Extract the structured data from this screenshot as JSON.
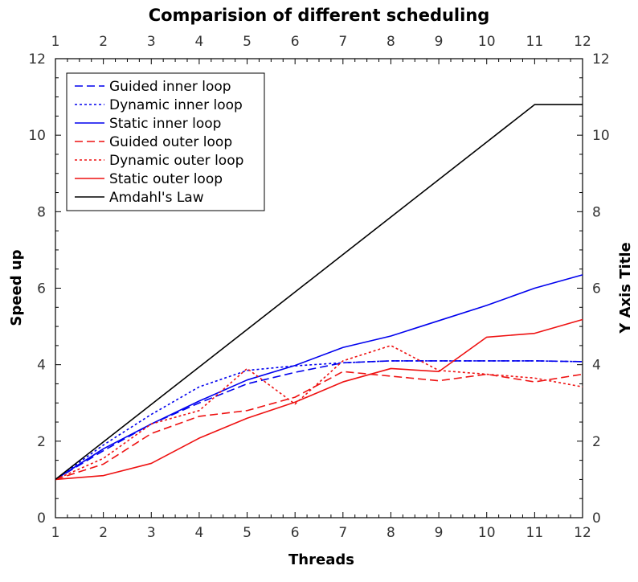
{
  "chart_data": {
    "type": "line",
    "title": "Comparision of different scheduling",
    "xlabel": "Threads",
    "ylabel": "Speed up",
    "ylabel_right": "Y Axis Title",
    "x": [
      1,
      2,
      3,
      4,
      5,
      6,
      7,
      8,
      9,
      10,
      11,
      12
    ],
    "xlim": [
      1,
      12
    ],
    "ylim": [
      0,
      12
    ],
    "x_ticks": [
      "1",
      "2",
      "3",
      "4",
      "5",
      "6",
      "7",
      "8",
      "9",
      "10",
      "11",
      "12"
    ],
    "y_ticks": [
      "0",
      "2",
      "4",
      "6",
      "8",
      "10",
      "12"
    ],
    "grid": false,
    "legend_position": "top-left",
    "series": [
      {
        "name": "Guided inner loop",
        "color": "#0000ee",
        "dash": "dashed",
        "values": [
          1.0,
          1.75,
          2.45,
          3.0,
          3.5,
          3.8,
          4.05,
          4.1,
          4.1,
          4.1,
          4.1,
          4.08
        ]
      },
      {
        "name": "Dynamic inner loop",
        "color": "#0000ee",
        "dash": "dotted",
        "values": [
          1.0,
          1.9,
          2.7,
          3.42,
          3.85,
          3.97,
          4.05,
          4.1,
          4.1,
          4.1,
          4.1,
          4.08
        ]
      },
      {
        "name": "Static inner loop",
        "color": "#0000ee",
        "dash": "solid",
        "values": [
          1.0,
          1.8,
          2.45,
          3.05,
          3.6,
          3.98,
          4.45,
          4.75,
          5.15,
          5.55,
          6.0,
          6.35
        ]
      },
      {
        "name": "Guided  outer loop",
        "color": "#ee1111",
        "dash": "dashed",
        "values": [
          1.0,
          1.4,
          2.2,
          2.65,
          2.8,
          3.15,
          3.82,
          3.7,
          3.58,
          3.75,
          3.55,
          3.75
        ]
      },
      {
        "name": "Dynamic  outer loop",
        "color": "#ee1111",
        "dash": "dotted",
        "values": [
          1.0,
          1.55,
          2.45,
          2.8,
          3.9,
          2.97,
          4.1,
          4.5,
          3.85,
          3.75,
          3.65,
          3.42
        ]
      },
      {
        "name": "Static outer loop",
        "color": "#ee1111",
        "dash": "solid",
        "values": [
          1.0,
          1.1,
          1.42,
          2.08,
          2.6,
          3.02,
          3.55,
          3.9,
          3.82,
          4.72,
          4.82,
          5.18
        ]
      },
      {
        "name": "Amdahl's Law",
        "color": "#000000",
        "dash": "solid",
        "values": [
          1.0,
          1.98,
          2.96,
          3.94,
          4.92,
          5.9,
          6.88,
          7.86,
          8.84,
          9.82,
          10.8,
          10.8
        ]
      }
    ]
  }
}
